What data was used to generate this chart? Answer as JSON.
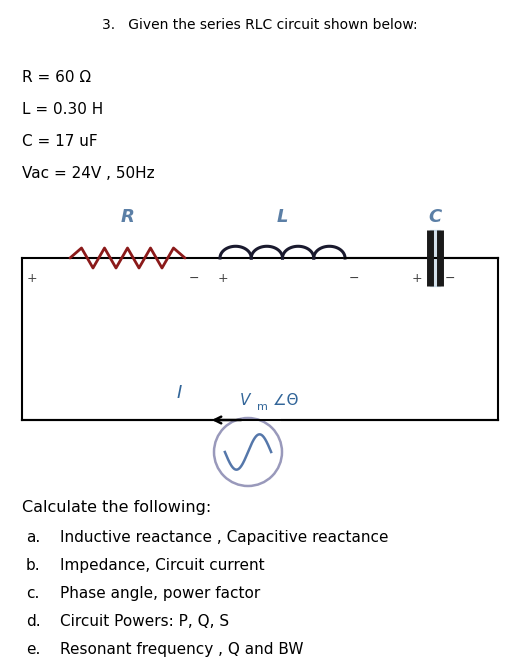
{
  "title": "3.   Given the series RLC circuit shown below:",
  "params": [
    "R = 60 Ω",
    "L = 0.30 H",
    "C = 17 uF",
    "Vac = 24V , 50Hz"
  ],
  "circuit_label_R": "R",
  "circuit_label_L": "L",
  "circuit_label_C": "C",
  "circuit_label_I": "I",
  "questions_header": "Calculate the following:",
  "questions": [
    "Inductive reactance , Capacitive reactance",
    "Impedance, Circuit current",
    "Phase angle, power factor",
    "Circuit Powers: P, Q, S",
    "Resonant frequency , Q and BW"
  ],
  "question_labels": [
    "a.",
    "b.",
    "c.",
    "d.",
    "e."
  ],
  "bg_color": "#ffffff",
  "text_color": "#000000",
  "wire_color": "#000000",
  "resistor_color": "#8b1a1a",
  "inductor_color": "#1a1a2e",
  "cap_color": "#1a1a1a",
  "comp_label_color": "#5b7fa6",
  "source_circle_color": "#9999bb",
  "source_wave_color": "#5577aa",
  "vm_label_color": "#336699",
  "i_label_color": "#336699",
  "plus_minus_color": "#444444",
  "title_color": "#000000",
  "param_color": "#000000"
}
